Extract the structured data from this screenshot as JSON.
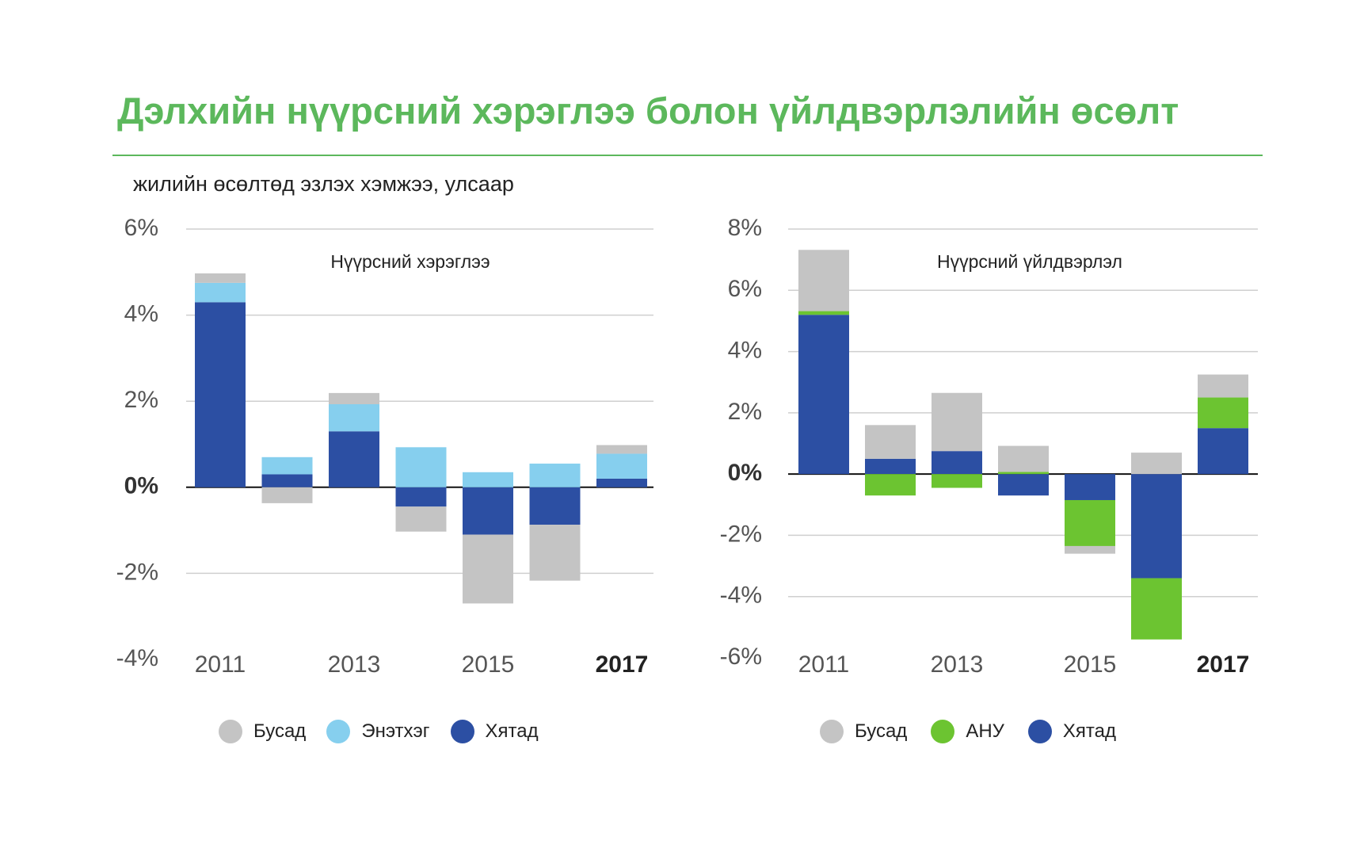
{
  "title": "Дэлхийн нүүрсний хэрэглээ болон үйлдвэрлэлийн өсөлт",
  "subtitle": "жилийн өсөлтөд эзлэх хэмжээ, улсаар",
  "colors": {
    "title": "#5cb85c",
    "busad": "#c4c4c4",
    "enetkheg": "#86cfee",
    "khyatad": "#2c4fa3",
    "anu": "#6cc431"
  },
  "chart_data": [
    {
      "type": "bar",
      "stacked": true,
      "title": "Нүүрсний хэрэглээ",
      "categories": [
        "2011",
        "2012",
        "2013",
        "2014",
        "2015",
        "2016",
        "2017"
      ],
      "tick_labels": [
        "2011",
        "",
        "2013",
        "",
        "2015",
        "",
        "2017"
      ],
      "bold_tick": "2017",
      "ylim": [
        -4,
        6
      ],
      "yticks": [
        -4,
        -2,
        0,
        2,
        4,
        6
      ],
      "ytick_labels": [
        "-4%",
        "-2%",
        "0%",
        "2%",
        "4%",
        "6%"
      ],
      "grid": true,
      "legend": "bottom",
      "series": [
        {
          "name": "Хятад",
          "color": "#2c4fa3",
          "values": [
            4.3,
            0.3,
            1.3,
            -0.45,
            -1.1,
            -0.87,
            0.2
          ]
        },
        {
          "name": "Энэтхэг",
          "color": "#86cfee",
          "values": [
            0.45,
            0.4,
            0.63,
            0.93,
            0.35,
            0.55,
            0.58
          ]
        },
        {
          "name": "Бусад",
          "color": "#c4c4c4",
          "values": [
            0.22,
            -0.37,
            0.26,
            -0.58,
            -1.6,
            -1.3,
            0.2
          ]
        }
      ],
      "legend_entries": [
        {
          "label": "Бусад",
          "color": "#c4c4c4"
        },
        {
          "label": "Энэтхэг",
          "color": "#86cfee"
        },
        {
          "label": "Хятад",
          "color": "#2c4fa3"
        }
      ]
    },
    {
      "type": "bar",
      "stacked": true,
      "title": "Нүүрсний үйлдвэрлэл",
      "categories": [
        "2011",
        "2012",
        "2013",
        "2014",
        "2015",
        "2016",
        "2017"
      ],
      "tick_labels": [
        "2011",
        "",
        "2013",
        "",
        "2015",
        "",
        "2017"
      ],
      "bold_tick": "2017",
      "ylim": [
        -6,
        8
      ],
      "yticks": [
        -6,
        -4,
        -2,
        0,
        2,
        4,
        6,
        8
      ],
      "ytick_labels": [
        "-6%",
        "-4%",
        "-2%",
        "0%",
        "2%",
        "4%",
        "6%",
        "8%"
      ],
      "grid": true,
      "legend": "bottom",
      "series": [
        {
          "name": "Хятад",
          "color": "#2c4fa3",
          "values": [
            5.2,
            0.5,
            0.75,
            -0.7,
            -0.85,
            -3.4,
            1.5
          ]
        },
        {
          "name": "АНУ",
          "color": "#6cc431",
          "values": [
            0.12,
            -0.7,
            -0.45,
            0.07,
            -1.5,
            -2.0,
            1.0
          ]
        },
        {
          "name": "Бусад",
          "color": "#c4c4c4",
          "values": [
            2.0,
            1.1,
            1.9,
            0.85,
            -0.25,
            0.7,
            0.75
          ]
        }
      ],
      "legend_entries": [
        {
          "label": "Бусад",
          "color": "#c4c4c4"
        },
        {
          "label": "АНУ",
          "color": "#6cc431"
        },
        {
          "label": "Хятад",
          "color": "#2c4fa3"
        }
      ]
    }
  ]
}
